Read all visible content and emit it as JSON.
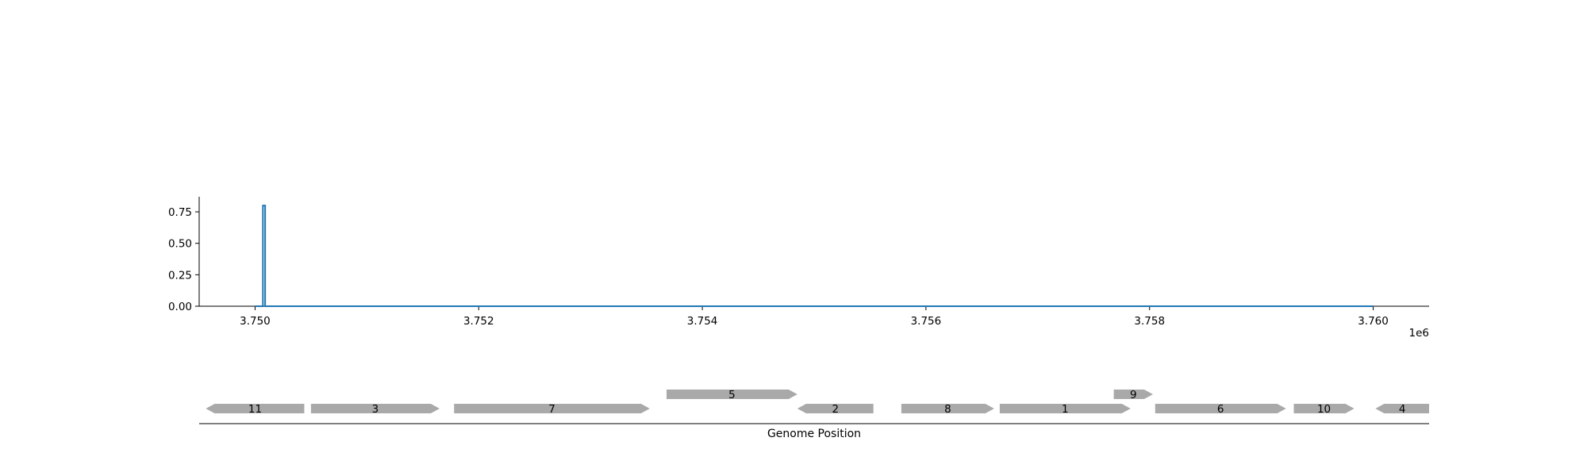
{
  "chart_data": [
    {
      "type": "line",
      "title": "",
      "xlabel": "",
      "ylabel": "",
      "x_offset_label": "1e6",
      "xlim": [
        3749500,
        3760500
      ],
      "ylim": [
        0,
        0.87
      ],
      "x_ticks": [
        3750000,
        3752000,
        3754000,
        3756000,
        3758000,
        3760000
      ],
      "x_tick_labels": [
        "3.750",
        "3.752",
        "3.754",
        "3.756",
        "3.758",
        "3.760"
      ],
      "y_ticks": [
        0,
        0.25,
        0.5,
        0.75
      ],
      "y_tick_labels": [
        "0.00",
        "0.25",
        "0.50",
        "0.75"
      ],
      "grid": false,
      "color": "#1f77b4",
      "x": [
        3750000,
        3750070,
        3750070,
        3750090,
        3750090,
        3760000
      ],
      "y": [
        0,
        0,
        0.8,
        0.8,
        0,
        0
      ]
    },
    {
      "type": "gene-track",
      "xlabel": "Genome Position",
      "xlim": [
        3749500,
        3760500
      ],
      "gene_color": "#a9a9a9",
      "genes": [
        {
          "label": "11",
          "start": 3749560,
          "end": 3750440,
          "strand": -1,
          "row": 0
        },
        {
          "label": "3",
          "start": 3750500,
          "end": 3751650,
          "strand": 1,
          "row": 0
        },
        {
          "label": "7",
          "start": 3751780,
          "end": 3753530,
          "strand": 1,
          "row": 0
        },
        {
          "label": "5",
          "start": 3753680,
          "end": 3754850,
          "strand": 1,
          "row": 1
        },
        {
          "label": "2",
          "start": 3754850,
          "end": 3755530,
          "strand": -1,
          "row": 0
        },
        {
          "label": "8",
          "start": 3755780,
          "end": 3756610,
          "strand": 1,
          "row": 0
        },
        {
          "label": "1",
          "start": 3756660,
          "end": 3757830,
          "strand": 1,
          "row": 0
        },
        {
          "label": "9",
          "start": 3757680,
          "end": 3758030,
          "strand": 1,
          "row": 1
        },
        {
          "label": "6",
          "start": 3758050,
          "end": 3759220,
          "strand": 1,
          "row": 0
        },
        {
          "label": "10",
          "start": 3759290,
          "end": 3759830,
          "strand": 1,
          "row": 0
        },
        {
          "label": "4",
          "start": 3760020,
          "end": 3760500,
          "strand": -1,
          "row": 0
        }
      ]
    }
  ]
}
